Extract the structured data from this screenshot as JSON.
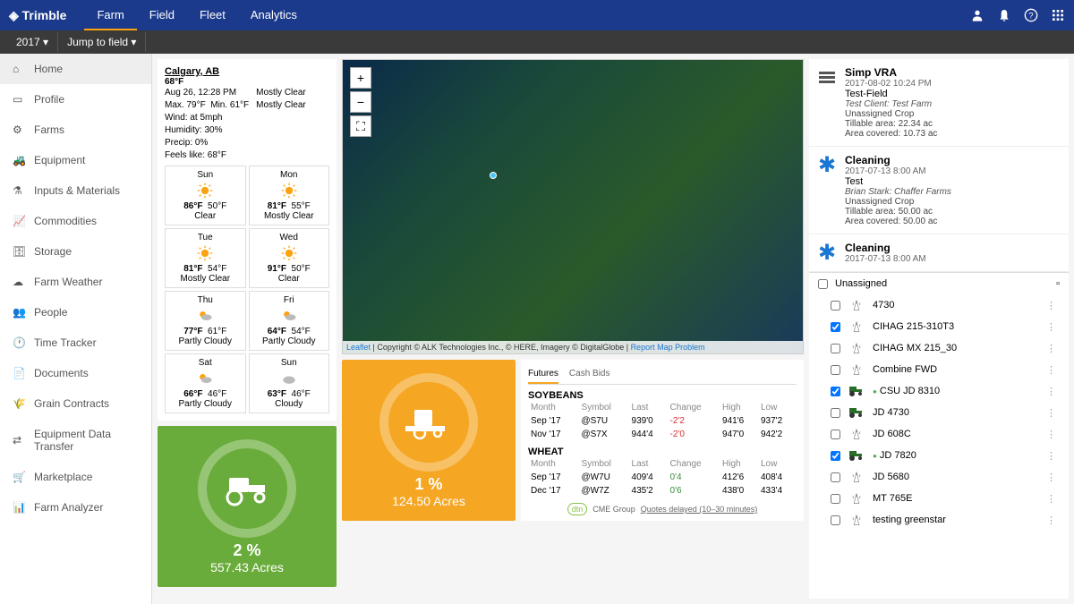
{
  "brand": "Trimble",
  "topnav": [
    "Farm",
    "Field",
    "Fleet",
    "Analytics"
  ],
  "active_topnav": 0,
  "subbar": {
    "year": "2017 ▾",
    "jump": "Jump to field ▾"
  },
  "sidebar": [
    {
      "label": "Home",
      "icon": "home"
    },
    {
      "label": "Profile",
      "icon": "profile"
    },
    {
      "label": "Farms",
      "icon": "farms"
    },
    {
      "label": "Equipment",
      "icon": "equipment"
    },
    {
      "label": "Inputs & Materials",
      "icon": "inputs"
    },
    {
      "label": "Commodities",
      "icon": "chart"
    },
    {
      "label": "Storage",
      "icon": "storage"
    },
    {
      "label": "Farm Weather",
      "icon": "weather"
    },
    {
      "label": "People",
      "icon": "people"
    },
    {
      "label": "Time Tracker",
      "icon": "clock"
    },
    {
      "label": "Documents",
      "icon": "doc"
    },
    {
      "label": "Grain Contracts",
      "icon": "grain"
    },
    {
      "label": "Equipment Data Transfer",
      "icon": "transfer"
    },
    {
      "label": "Marketplace",
      "icon": "market"
    },
    {
      "label": "Farm Analyzer",
      "icon": "analyzer"
    }
  ],
  "active_side": 0,
  "weather": {
    "location": "Calgary, AB",
    "temp": "68°F",
    "asof": "Aug 26, 12:28 PM",
    "cond1": "Mostly Clear",
    "cond2": "Mostly Clear",
    "max": "Max. 79°F",
    "min": "Min. 61°F",
    "wind": "Wind: at 5mph",
    "humidity": "Humidity: 30%",
    "precip": "Precip: 0%",
    "feels": "Feels like: 68°F",
    "forecast": [
      {
        "day": "Sun",
        "hi": "86°F",
        "lo": "50°F",
        "cond": "Clear",
        "icon": "sun"
      },
      {
        "day": "Mon",
        "hi": "81°F",
        "lo": "55°F",
        "cond": "Mostly Clear",
        "icon": "sun"
      },
      {
        "day": "Tue",
        "hi": "81°F",
        "lo": "54°F",
        "cond": "Mostly Clear",
        "icon": "sun"
      },
      {
        "day": "Wed",
        "hi": "91°F",
        "lo": "50°F",
        "cond": "Clear",
        "icon": "sun"
      },
      {
        "day": "Thu",
        "hi": "77°F",
        "lo": "61°F",
        "cond": "Partly Cloudy",
        "icon": "pcloud"
      },
      {
        "day": "Fri",
        "hi": "64°F",
        "lo": "54°F",
        "cond": "Partly Cloudy",
        "icon": "pcloud"
      },
      {
        "day": "Sat",
        "hi": "66°F",
        "lo": "46°F",
        "cond": "Partly Cloudy",
        "icon": "pcloud"
      },
      {
        "day": "Sun",
        "hi": "63°F",
        "lo": "46°F",
        "cond": "Cloudy",
        "icon": "cloud"
      }
    ]
  },
  "stats": [
    {
      "color": "#6aac3b",
      "pct": "2 %",
      "acres": "557.43 Acres"
    },
    {
      "color": "#f5a623",
      "pct": "1 %",
      "acres": "124.50 Acres"
    }
  ],
  "map": {
    "attr_leaflet": "Leaflet",
    "attr_text": " | Copyright © ALK Technologies Inc., © HERE, Imagery © DigitalGlobe | ",
    "attr_report": "Report Map Problem"
  },
  "futures": {
    "tabs": [
      "Futures",
      "Cash Bids"
    ],
    "active_tab": 0,
    "columns": [
      "Month",
      "Symbol",
      "Last",
      "Change",
      "High",
      "Low"
    ],
    "groups": [
      {
        "name": "SOYBEANS",
        "rows": [
          {
            "month": "Sep '17",
            "sym": "@S7U",
            "last": "939'0",
            "chg": "-2'2",
            "chg_cls": "neg",
            "high": "941'6",
            "low": "937'2"
          },
          {
            "month": "Nov '17",
            "sym": "@S7X",
            "last": "944'4",
            "chg": "-2'0",
            "chg_cls": "neg",
            "high": "947'0",
            "low": "942'2"
          }
        ]
      },
      {
        "name": "WHEAT",
        "rows": [
          {
            "month": "Sep '17",
            "sym": "@W7U",
            "last": "409'4",
            "chg": "0'4",
            "chg_cls": "pos",
            "high": "412'6",
            "low": "408'4"
          },
          {
            "month": "Dec '17",
            "sym": "@W7Z",
            "last": "435'2",
            "chg": "0'6",
            "chg_cls": "pos",
            "high": "438'0",
            "low": "433'4"
          }
        ]
      }
    ],
    "note_brand": "CME Group",
    "note": "Quotes delayed (10–30 minutes)"
  },
  "activities": [
    {
      "title": "Simp VRA",
      "date": "2017-08-02 10:24 PM",
      "field": "Test-Field",
      "client": "Test Client: Test Farm",
      "crop": "Unassigned Crop",
      "tillable": "Tillable area: 22.34 ac",
      "covered": "Area covered: 10.73 ac",
      "icon": "rows"
    },
    {
      "title": "Cleaning",
      "date": "2017-07-13 8:00 AM",
      "field": "Test",
      "client": "Brian Stark: Chaffer Farms",
      "crop": "Unassigned Crop",
      "tillable": "Tillable area: 50.00 ac",
      "covered": "Area covered: 50.00 ac",
      "icon": "star"
    },
    {
      "title": "Cleaning",
      "date": "2017-07-13 8:00 AM",
      "icon": "star"
    }
  ],
  "equipment_header": "Unassigned",
  "equipment": [
    {
      "name": "4730",
      "icon": "tower",
      "chk": false
    },
    {
      "name": "CIHAG 215-310T3",
      "icon": "tower",
      "chk": true
    },
    {
      "name": "CIHAG MX 215_30",
      "icon": "tower",
      "chk": false
    },
    {
      "name": "Combine FWD",
      "icon": "tower",
      "chk": false
    },
    {
      "name": "CSU JD 8310",
      "icon": "tractor",
      "chk": true,
      "dot": true
    },
    {
      "name": "JD 4730",
      "icon": "tractor",
      "chk": false
    },
    {
      "name": "JD 608C",
      "icon": "tower",
      "chk": false
    },
    {
      "name": "JD 7820",
      "icon": "tractor",
      "chk": true,
      "dot": true
    },
    {
      "name": "JD 5680",
      "icon": "tower",
      "chk": false
    },
    {
      "name": "MT 765E",
      "icon": "tower",
      "chk": false
    },
    {
      "name": "testing greenstar",
      "icon": "tower",
      "chk": false
    }
  ]
}
